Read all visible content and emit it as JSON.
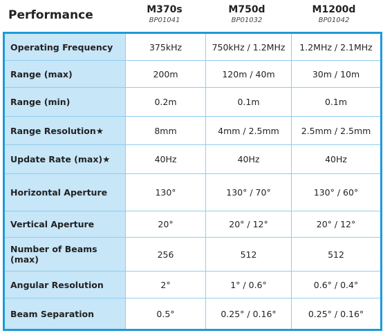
{
  "header": {
    "title": "Performance",
    "columns": [
      {
        "model": "M370s",
        "code": "BP01041"
      },
      {
        "model": "M750d",
        "code": "BP01032"
      },
      {
        "model": "M1200d",
        "code": "BP01042"
      }
    ]
  },
  "table": {
    "rows": [
      [
        "Operating Frequency",
        "375kHz",
        "750kHz / 1.2MHz",
        "1.2MHz / 2.1MHz"
      ],
      [
        "Range (max)",
        "200m",
        "120m / 40m",
        "30m / 10m"
      ],
      [
        "Range (min)",
        "0.2m",
        "0.1m",
        "0.1m"
      ],
      [
        "Range Resolution★",
        "8mm",
        "4mm / 2.5mm",
        "2.5mm / 2.5mm"
      ],
      [
        "Update Rate (max)★",
        "40Hz",
        "40Hz",
        "40Hz"
      ],
      [
        "Horizontal Aperture",
        "130°",
        "130° / 70°",
        "130° / 60°"
      ],
      [
        "Vertical Aperture",
        "20°",
        "20° / 12°",
        "20° / 12°"
      ],
      [
        "Number of Beams (max)",
        "256",
        "512",
        "512"
      ],
      [
        "Angular Resolution",
        "2°",
        "1° / 0.6°",
        "0.6° / 0.4°"
      ],
      [
        "Beam Separation",
        "0.5°",
        "0.25° / 0.16°",
        "0.25° / 0.16°"
      ]
    ]
  }
}
